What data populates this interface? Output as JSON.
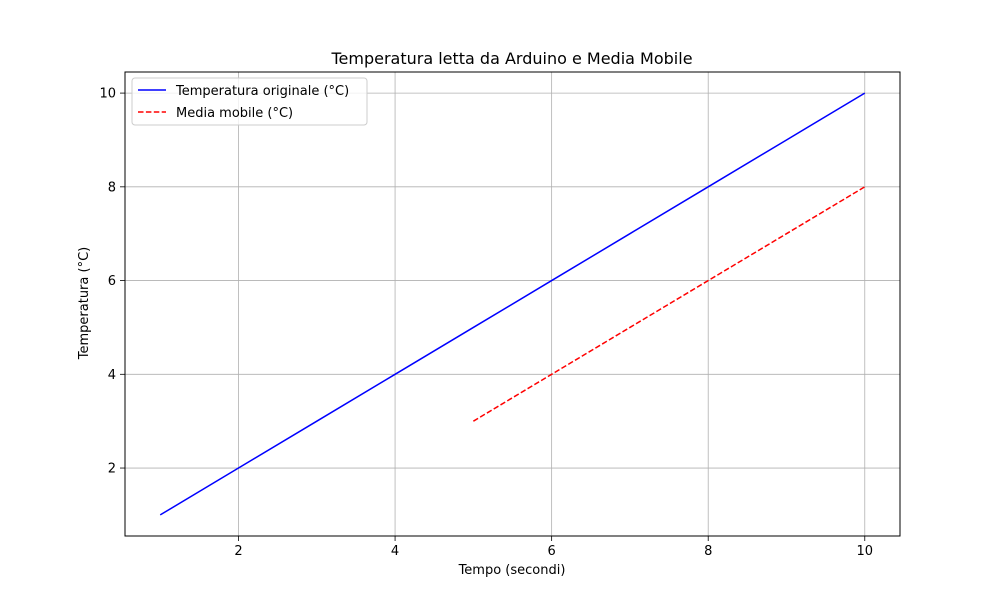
{
  "chart_data": {
    "type": "line",
    "title": "Temperatura letta da Arduino e Media Mobile",
    "xlabel": "Tempo (secondi)",
    "ylabel": "Temperatura (°C)",
    "xlim": [
      0.55,
      10.45
    ],
    "ylim": [
      0.55,
      10.45
    ],
    "xticks": [
      2,
      4,
      6,
      8,
      10
    ],
    "yticks": [
      2,
      4,
      6,
      8,
      10
    ],
    "grid": true,
    "legend_position": "top-left",
    "series": [
      {
        "name": "Temperatura originale (°C)",
        "color": "#0000ff",
        "style": "solid",
        "x": [
          1,
          2,
          3,
          4,
          5,
          6,
          7,
          8,
          9,
          10
        ],
        "y": [
          1,
          2,
          3,
          4,
          5,
          6,
          7,
          8,
          9,
          10
        ]
      },
      {
        "name": "Media mobile (°C)",
        "color": "#ff0000",
        "style": "dashed",
        "x": [
          5,
          6,
          7,
          8,
          9,
          10
        ],
        "y": [
          3,
          4,
          5,
          6,
          7,
          8
        ]
      }
    ]
  }
}
